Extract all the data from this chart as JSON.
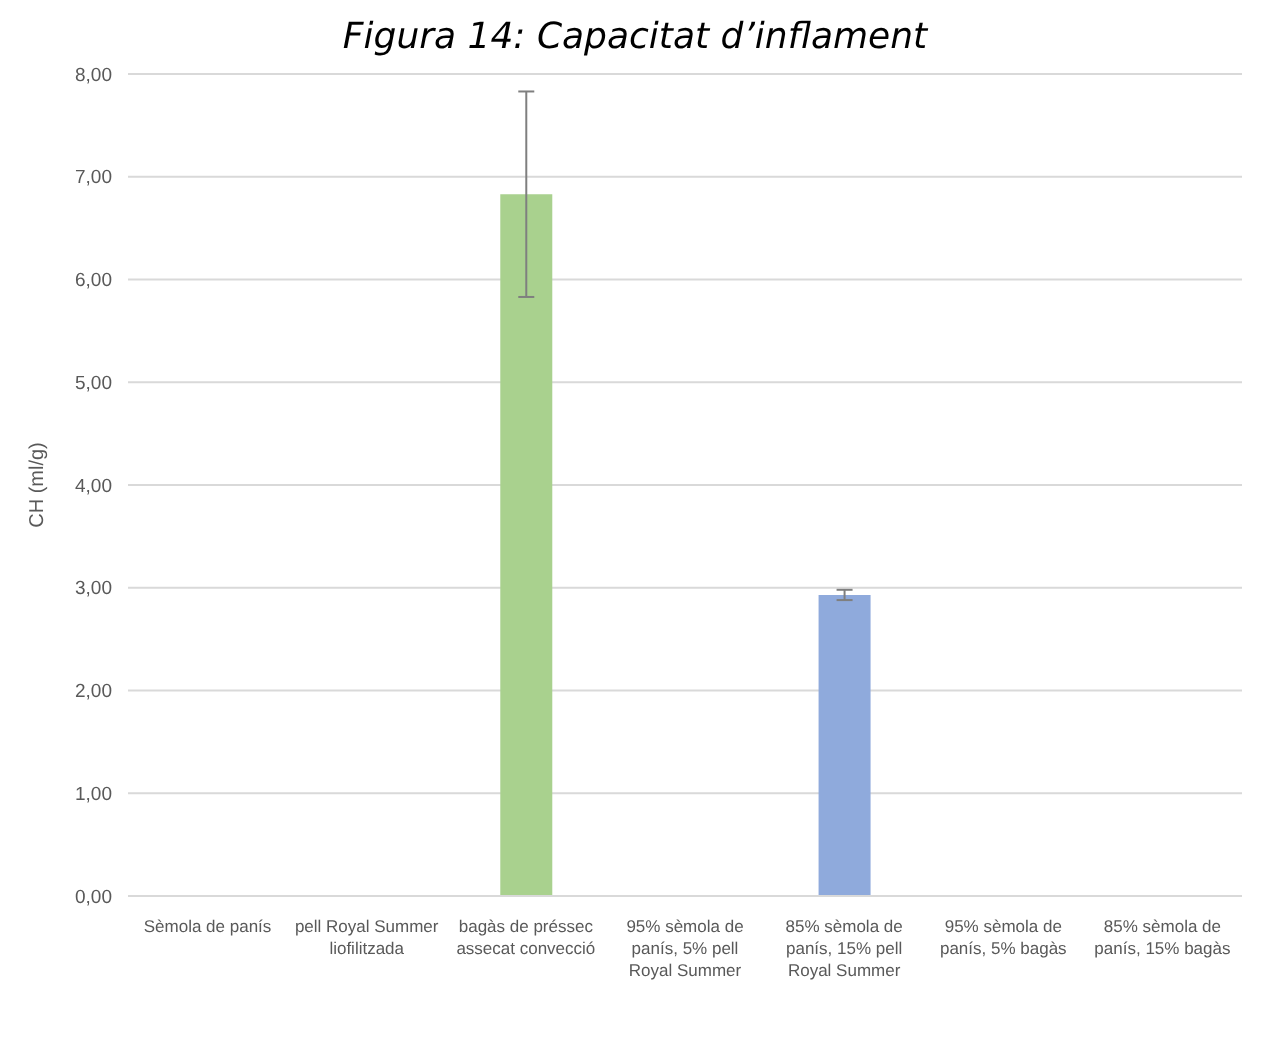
{
  "chart_data": {
    "type": "bar",
    "title": "Figura 14: Capacitat d’inflament",
    "ylabel": "CH (ml/g)",
    "categories": [
      "Sèmola de panís",
      "pell Royal Summer liofilitzada",
      "bagàs de préssec assecat convecció",
      "95% sèmola de panís, 5% pell Royal Summer",
      "85% sèmola de panís, 15% pell Royal Summer",
      "95% sèmola de panís, 5% bagàs",
      "85% sèmola de panís, 15% bagàs"
    ],
    "values": [
      null,
      null,
      6.83,
      null,
      2.93,
      null,
      null
    ],
    "colors": [
      "#a9d18e",
      "#a9d18e",
      "#a9d18e",
      "#8faadc",
      "#8faadc",
      "#8faadc",
      "#8faadc"
    ],
    "errors": [
      null,
      null,
      1.0,
      null,
      0.05,
      null,
      null
    ],
    "ylim": [
      0,
      8
    ],
    "yticks": [
      {
        "value": 0,
        "label": "0,00"
      },
      {
        "value": 1,
        "label": "1,00"
      },
      {
        "value": 2,
        "label": "2,00"
      },
      {
        "value": 3,
        "label": "3,00"
      },
      {
        "value": 4,
        "label": "4,00"
      },
      {
        "value": 5,
        "label": "5,00"
      },
      {
        "value": 6,
        "label": "6,00"
      },
      {
        "value": 7,
        "label": "7,00"
      },
      {
        "value": 8,
        "label": "8,00"
      }
    ],
    "grid": "y"
  }
}
